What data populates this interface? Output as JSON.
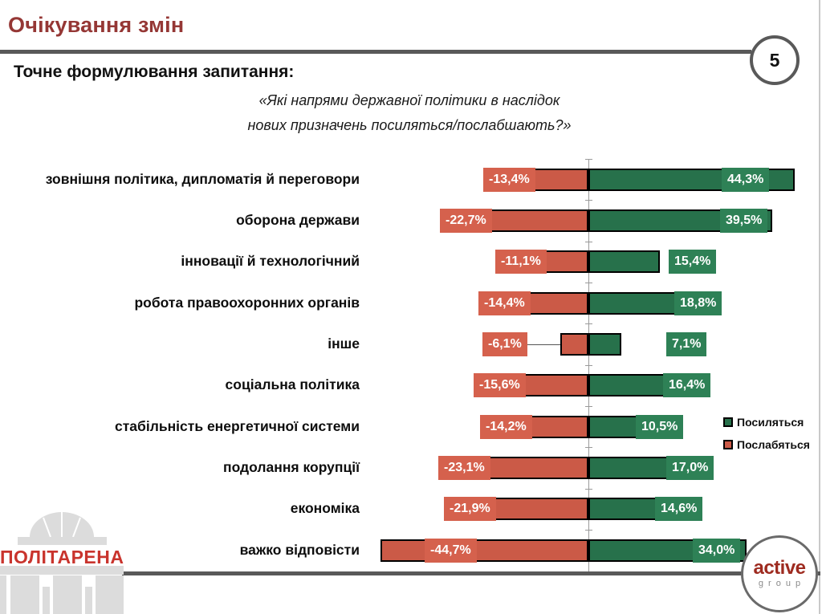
{
  "slide": {
    "title": "Очікування змін",
    "page_number": "5"
  },
  "question": {
    "label": "Точне формулювання запитання:",
    "quote_line1": "«Які напрями державної політики  в наслідок",
    "quote_line2": "нових призначень посиляться/послабшають?»"
  },
  "chart_data": {
    "type": "bar",
    "orientation": "horizontal-diverging",
    "title": "",
    "xlabel": "",
    "ylabel": "",
    "xlim": [
      -50,
      50
    ],
    "grid": false,
    "legend_position": "right",
    "categories": [
      "зовнішня політика, дипломатія й переговори",
      "оборона держави",
      "інновації й технологічний",
      "робота правоохоронних органів",
      "інше",
      "соціальна політика",
      "стабільність енергетичної системи",
      "подолання корупції",
      "економіка",
      "важко відповісти"
    ],
    "series": [
      {
        "name": "Посиляться",
        "color": "#27714B",
        "label_box_color": "#2E8156",
        "values": [
          44.3,
          39.5,
          15.4,
          18.8,
          7.1,
          16.4,
          10.5,
          17.0,
          14.6,
          34.0
        ],
        "labels": [
          "44,3%",
          "39,5%",
          "15,4%",
          "18,8%",
          "7,1%",
          "16,4%",
          "10,5%",
          "17,0%",
          "14,6%",
          "34,0%"
        ]
      },
      {
        "name": "Послабяться",
        "color": "#CB5A47",
        "label_box_color": "#D5614D",
        "values": [
          -13.4,
          -22.7,
          -11.1,
          -14.4,
          -6.1,
          -15.6,
          -14.2,
          -23.1,
          -21.9,
          -44.7
        ],
        "labels": [
          "-13,4%",
          "-22,7%",
          "-11,1%",
          "-14,4%",
          "-6,1%",
          "-15,6%",
          "-14,2%",
          "-23,1%",
          "-21,9%",
          "-44,7%"
        ]
      }
    ],
    "label_layout": {
      "green": [
        {
          "mode": "in",
          "gap": 32
        },
        {
          "mode": "in",
          "gap": 6
        },
        {
          "mode": "out",
          "gap": 11
        },
        {
          "mode": "out",
          "gap": -2
        },
        {
          "mode": "out",
          "gap": 56
        },
        {
          "mode": "out",
          "gap": -2
        },
        {
          "mode": "out",
          "gap": -2
        },
        {
          "mode": "out",
          "gap": -2
        },
        {
          "mode": "out",
          "gap": -2
        },
        {
          "mode": "in",
          "gap": 8
        }
      ],
      "red": [
        {
          "mode": "end",
          "gap": 12
        },
        {
          "mode": "end",
          "gap": 12
        },
        {
          "mode": "end",
          "gap": 12
        },
        {
          "mode": "end",
          "gap": 12
        },
        {
          "mode": "leader",
          "gap": 41
        },
        {
          "mode": "end",
          "gap": 12
        },
        {
          "mode": "end",
          "gap": 12
        },
        {
          "mode": "end",
          "gap": 12
        },
        {
          "mode": "end",
          "gap": 12
        },
        {
          "mode": "in",
          "gap": 55
        }
      ]
    }
  },
  "colors": {
    "title_red": "#953735",
    "rule_gray": "#595959",
    "axis_gray": "#9a9a9a",
    "logo_building_gray": "#DCDCDC",
    "politarena_red": "#C9342D",
    "active_red": "#9E2B20"
  },
  "footer": {
    "politarena_text": "ПОЛІТАРЕНА",
    "active_logo_line1": "active",
    "active_logo_line2": "group"
  }
}
